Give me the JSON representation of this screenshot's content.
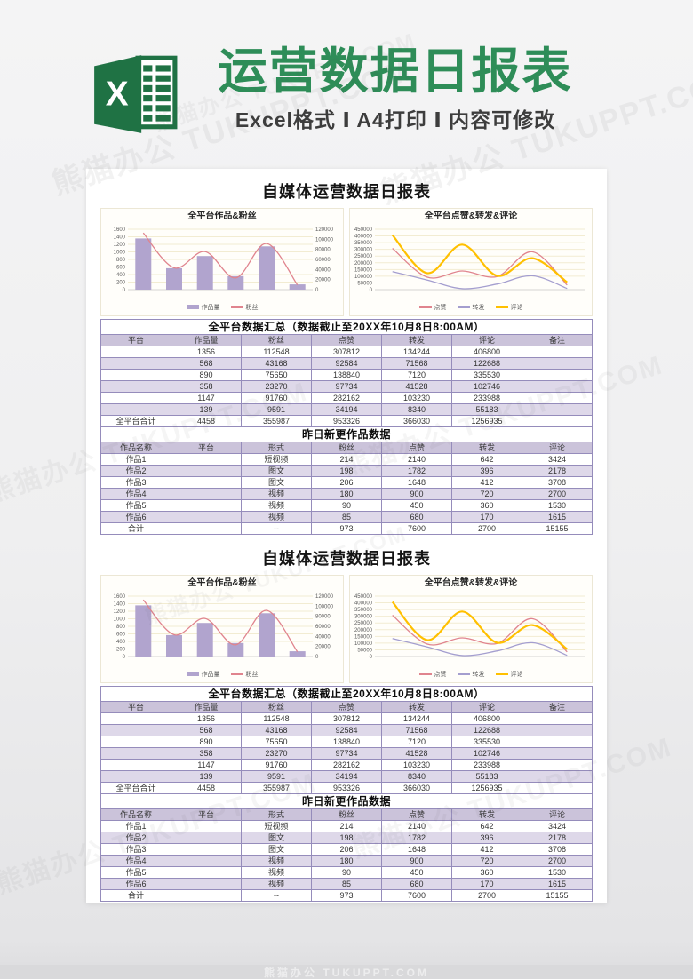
{
  "watermark": {
    "text": "熊猫办公 TUKUPPT.COM"
  },
  "banner": {
    "title": "运营数据日报表",
    "subtitle": "Excel格式 Ⅰ A4打印 Ⅰ 内容可修改",
    "icon": "excel-logo-icon",
    "title_color": "#2e8d58",
    "excel_green_dark": "#1f7244"
  },
  "sections_count": 2,
  "report": {
    "title": "自媒体运营数据日报表",
    "summary_table": {
      "title": "全平台数据汇总（数据截止至20XX年10月8日8:00AM）",
      "columns": [
        "平台",
        "作品量",
        "粉丝",
        "点赞",
        "转发",
        "评论",
        "备注"
      ],
      "rows": [
        [
          "",
          "1356",
          "112548",
          "307812",
          "134244",
          "406800",
          ""
        ],
        [
          "",
          "568",
          "43168",
          "92584",
          "71568",
          "122688",
          ""
        ],
        [
          "",
          "890",
          "75650",
          "138840",
          "7120",
          "335530",
          ""
        ],
        [
          "",
          "358",
          "23270",
          "97734",
          "41528",
          "102746",
          ""
        ],
        [
          "",
          "1147",
          "91760",
          "282162",
          "103230",
          "233988",
          ""
        ],
        [
          "",
          "139",
          "9591",
          "34194",
          "8340",
          "55183",
          ""
        ],
        [
          "全平台合计",
          "4458",
          "355987",
          "953326",
          "366030",
          "1256935",
          ""
        ]
      ]
    },
    "works_table": {
      "title": "昨日新更作品数据",
      "columns": [
        "作品名称",
        "平台",
        "形式",
        "粉丝",
        "点赞",
        "转发",
        "评论"
      ],
      "rows": [
        [
          "作品1",
          "",
          "短视频",
          "214",
          "2140",
          "642",
          "3424"
        ],
        [
          "作品2",
          "",
          "图文",
          "198",
          "1782",
          "396",
          "2178"
        ],
        [
          "作品3",
          "",
          "图文",
          "206",
          "1648",
          "412",
          "3708"
        ],
        [
          "作品4",
          "",
          "视频",
          "180",
          "900",
          "720",
          "2700"
        ],
        [
          "作品5",
          "",
          "视频",
          "90",
          "450",
          "360",
          "1530"
        ],
        [
          "作品6",
          "",
          "视频",
          "85",
          "680",
          "170",
          "1615"
        ],
        [
          "合计",
          "",
          "--",
          "973",
          "7600",
          "2700",
          "15155"
        ]
      ]
    }
  },
  "chart_data": [
    {
      "type": "bar+line",
      "title": "全平台作品&粉丝",
      "categories": [
        "",
        "",
        "",
        "",
        "",
        ""
      ],
      "series": [
        {
          "name": "作品量",
          "type": "bar",
          "axis": "left",
          "color": "#b1a4ce",
          "values": [
            1356,
            568,
            890,
            358,
            1147,
            139
          ]
        },
        {
          "name": "粉丝",
          "type": "line",
          "axis": "right",
          "color": "#e0848e",
          "stroke_width": 1.3,
          "values": [
            112548,
            43168,
            75650,
            23270,
            91760,
            9591
          ]
        }
      ],
      "left_axis": {
        "min": 0,
        "max": 1600,
        "step": 200
      },
      "right_axis": {
        "min": 0,
        "max": 120000,
        "step": 20000
      },
      "grid": true,
      "legend_position": "bottom"
    },
    {
      "type": "line",
      "title": "全平台点赞&转发&评论",
      "categories": [
        "",
        "",
        "",
        "",
        "",
        ""
      ],
      "series": [
        {
          "name": "点赞",
          "type": "line",
          "color": "#e0848e",
          "stroke_width": 1.3,
          "values": [
            307812,
            92584,
            138840,
            97734,
            282162,
            34194
          ]
        },
        {
          "name": "转发",
          "type": "line",
          "color": "#a49ecf",
          "stroke_width": 1.3,
          "values": [
            134244,
            71568,
            7120,
            41528,
            103230,
            8340
          ]
        },
        {
          "name": "评论",
          "type": "line",
          "color": "#ffc000",
          "stroke_width": 2.2,
          "values": [
            406800,
            122688,
            335530,
            102746,
            233988,
            55183
          ]
        }
      ],
      "y_axis": {
        "min": 0,
        "max": 450000,
        "step": 50000
      },
      "grid": true,
      "legend_position": "bottom"
    }
  ]
}
